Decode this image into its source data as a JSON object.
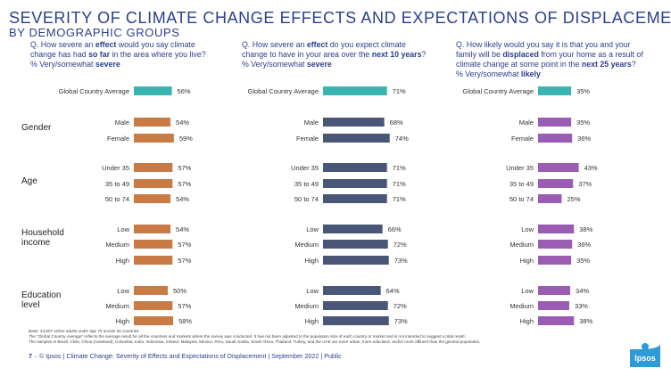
{
  "header": {
    "title": "SEVERITY OF CLIMATE CHANGE EFFECTS AND EXPECTATIONS OF DISPLACEMENT",
    "subtitle": "BY DEMOGRAPHIC GROUPS"
  },
  "questions": [
    {
      "line1_pre": "Q. How severe an ",
      "line1_b": "effect",
      "line1_post": " would you say climate",
      "line2_pre": "change has had ",
      "line2_b": "so far",
      "line2_post": " in the area where you live?",
      "line3_pre": "% Very/somewhat ",
      "line3_b": "severe"
    },
    {
      "line1_pre": "Q. How severe an ",
      "line1_b": "effect",
      "line1_post": " do you expect climate",
      "line2_pre": "change to have in your area over the ",
      "line2_b": "next 10 years",
      "line2_post": "?",
      "line3_pre": "% Very/somewhat ",
      "line3_b": "severe"
    },
    {
      "line1_pre": "Q. How likely would you say it is that you and your",
      "line1_b": "",
      "line1_post": "",
      "line2_pre": "family will be ",
      "line2_b": "displaced",
      "line2_post": " from your home as a result of",
      "line2b_pre": "climate change at some point in the ",
      "line2b_b": "next 25 years",
      "line2b_post": "?",
      "line3_pre": "% Very/somewhat ",
      "line3_b": "likely"
    }
  ],
  "chart_data": {
    "type": "bar",
    "orientation": "horizontal",
    "xlim": [
      0,
      100
    ],
    "groups": [
      "",
      "Gender",
      "Age",
      "Household income",
      "Education level"
    ],
    "categories": [
      "Global Country Average",
      "Male",
      "Female",
      "Under 35",
      "35 to 49",
      "50 to 74",
      "Low",
      "Medium",
      "High",
      "Low",
      "Medium",
      "High"
    ],
    "category_group": [
      0,
      1,
      1,
      2,
      2,
      2,
      3,
      3,
      3,
      4,
      4,
      4
    ],
    "series": [
      {
        "values": [
          56,
          54,
          59,
          57,
          57,
          54,
          54,
          57,
          57,
          50,
          57,
          58
        ],
        "color": "#c97b45",
        "highlight_color": "#3bb3b0"
      },
      {
        "values": [
          71,
          68,
          74,
          71,
          71,
          71,
          66,
          72,
          73,
          64,
          72,
          73
        ],
        "color": "#4a5678",
        "highlight_color": "#3bb3b0"
      },
      {
        "values": [
          35,
          35,
          36,
          43,
          37,
          25,
          38,
          36,
          35,
          34,
          33,
          38
        ],
        "color": "#9b5db4",
        "highlight_color": "#3bb3b0"
      }
    ],
    "value_suffix": "%"
  },
  "footnotes": [
    "Base: 23,507 online adults under age 75 across 34 countries",
    "The \"Global Country Average\" reflects the average result for all the countries and markets where the survey was conducted. It has not been adjusted to the population size of each country or market and is not intended to suggest a total result.",
    "The samples in Brazil, Chile, China (mainland), Colombia, India, Indonesia, Ireland, Malaysia, Mexico, Peru, Saudi Arabia, South Africa, Thailand, Turkey, and the UAE are more urban, more educated, and/or more affluent than the general population."
  ],
  "footer": {
    "page": "7",
    "text": "© Ipsos | Climate Change: Severity of Effects and Expectations of Displacement | September 2022 | Public",
    "logo": "Ipsos"
  }
}
